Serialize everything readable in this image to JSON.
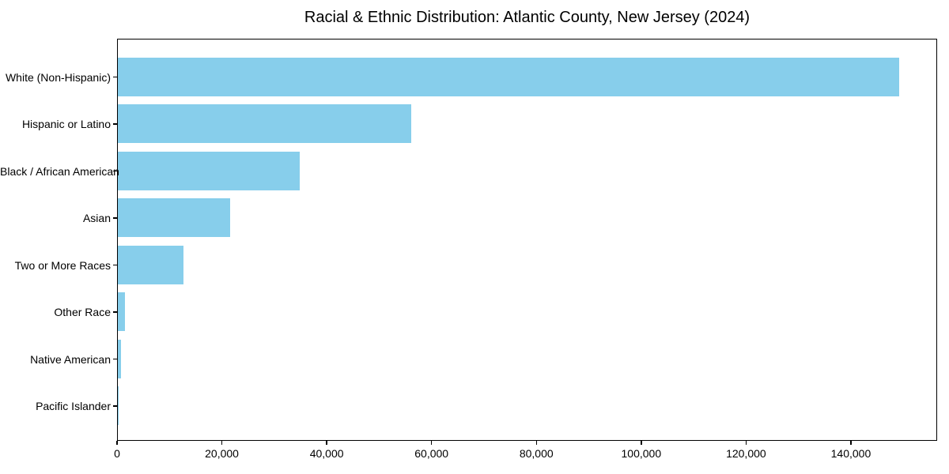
{
  "page": {
    "background_color": "#ffffff",
    "text_color": "#000000",
    "axis_color": "#000000"
  },
  "chart_data": {
    "type": "bar",
    "orientation": "horizontal",
    "title": "Racial & Ethnic Distribution: Atlantic County, New Jersey (2024)",
    "categories": [
      "White (Non-Hispanic)",
      "Hispanic or Latino",
      "Black / African American",
      "Asian",
      "Two or More Races",
      "Other Race",
      "Native American",
      "Pacific Islander"
    ],
    "values": [
      149000,
      56000,
      34700,
      21400,
      12500,
      1400,
      650,
      100
    ],
    "bar_color": "#87CEEB",
    "xlabel": "",
    "ylabel": "",
    "xlim": [
      0,
      156450
    ],
    "x_ticks": [
      0,
      20000,
      40000,
      60000,
      80000,
      100000,
      120000,
      140000
    ],
    "x_tick_labels": [
      "0",
      "20,000",
      "40,000",
      "60,000",
      "80,000",
      "100,000",
      "120,000",
      "140,000"
    ],
    "grid": false,
    "legend_position": "none"
  }
}
